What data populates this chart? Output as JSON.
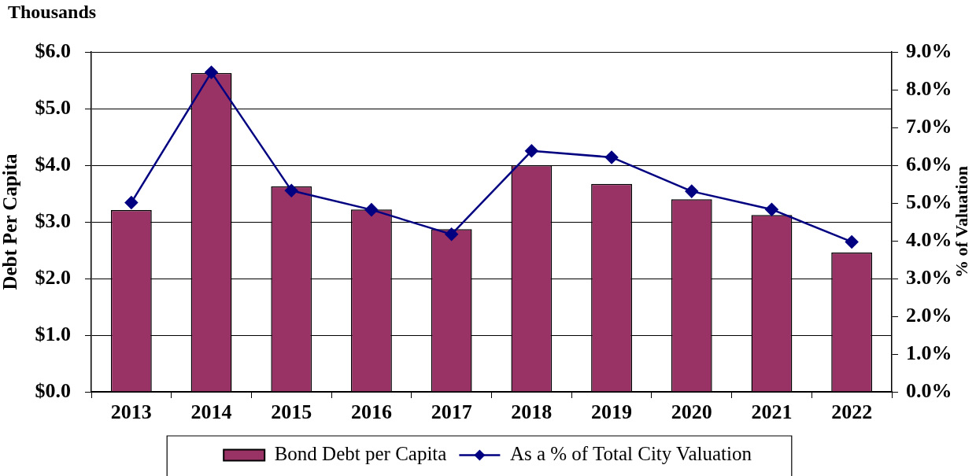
{
  "chart_data": {
    "type": "bar",
    "ylabel": "Debt Per Capita",
    "y2label": "% of Valuation",
    "annotations": [
      "Thousands"
    ],
    "categories": [
      "2013",
      "2014",
      "2015",
      "2016",
      "2017",
      "2018",
      "2019",
      "2020",
      "2021",
      "2022"
    ],
    "series": [
      {
        "name": "Bond Debt per Capita",
        "color": "#993366",
        "values": [
          3.21,
          5.63,
          3.63,
          3.22,
          2.87,
          4.0,
          3.67,
          3.4,
          3.12,
          2.46
        ]
      },
      {
        "name": "As a % of Total City Valuation",
        "type": "line",
        "axis": "y2",
        "color": "#000080",
        "values": [
          5.01,
          8.46,
          5.33,
          4.82,
          4.17,
          6.38,
          6.21,
          5.31,
          4.83,
          3.97
        ]
      }
    ],
    "ylim": [
      0,
      6
    ],
    "yticks": [
      {
        "value": 0,
        "label": "$0.0"
      },
      {
        "value": 1,
        "label": "$1.0"
      },
      {
        "value": 2,
        "label": "$2.0"
      },
      {
        "value": 3,
        "label": "$3.0"
      },
      {
        "value": 4,
        "label": "$4.0"
      },
      {
        "value": 5,
        "label": "$5.0"
      },
      {
        "value": 6,
        "label": "$6.0"
      }
    ],
    "y2lim": [
      0,
      9
    ],
    "y2ticks": [
      {
        "value": 0,
        "label": "0.0%"
      },
      {
        "value": 1,
        "label": "1.0%"
      },
      {
        "value": 2,
        "label": "2.0%"
      },
      {
        "value": 3,
        "label": "3.0%"
      },
      {
        "value": 4,
        "label": "4.0%"
      },
      {
        "value": 5,
        "label": "5.0%"
      },
      {
        "value": 6,
        "label": "6.0%"
      },
      {
        "value": 7,
        "label": "7.0%"
      },
      {
        "value": 8,
        "label": "8.0%"
      },
      {
        "value": 9,
        "label": "9.0%"
      }
    ],
    "grid": "y",
    "legend": "bottom",
    "marker": "diamond"
  }
}
